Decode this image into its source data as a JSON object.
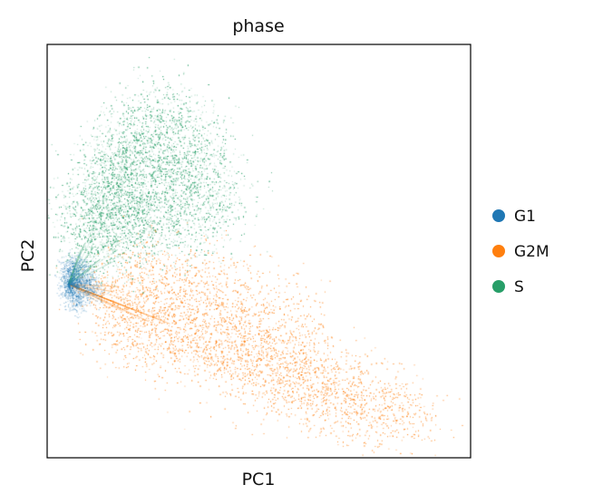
{
  "chart_data": {
    "type": "scatter",
    "title": "phase",
    "xlabel": "PC1",
    "ylabel": "PC2",
    "grid": false,
    "ticks": false,
    "legend_placement": "right",
    "xlim": [
      0,
      1
    ],
    "ylim": [
      0,
      1
    ],
    "series": [
      {
        "name": "G1",
        "color": "#1f77b4",
        "points": [
          [
            0.05,
            0.42
          ],
          [
            0.06,
            0.41
          ],
          [
            0.07,
            0.43
          ],
          [
            0.05,
            0.4
          ],
          [
            0.08,
            0.42
          ],
          [
            0.06,
            0.44
          ],
          [
            0.07,
            0.39
          ],
          [
            0.09,
            0.41
          ],
          [
            0.1,
            0.43
          ],
          [
            0.05,
            0.45
          ],
          [
            0.06,
            0.47
          ],
          [
            0.08,
            0.46
          ],
          [
            0.07,
            0.37
          ],
          [
            0.11,
            0.4
          ]
        ]
      },
      {
        "name": "G2M",
        "color": "#ff7f0e",
        "points": [
          [
            0.15,
            0.38
          ],
          [
            0.2,
            0.36
          ],
          [
            0.25,
            0.34
          ],
          [
            0.3,
            0.33
          ],
          [
            0.35,
            0.3
          ],
          [
            0.4,
            0.28
          ],
          [
            0.45,
            0.26
          ],
          [
            0.5,
            0.24
          ],
          [
            0.55,
            0.22
          ],
          [
            0.6,
            0.2
          ],
          [
            0.65,
            0.18
          ],
          [
            0.7,
            0.16
          ],
          [
            0.75,
            0.14
          ],
          [
            0.8,
            0.12
          ],
          [
            0.85,
            0.1
          ],
          [
            0.2,
            0.42
          ],
          [
            0.3,
            0.4
          ],
          [
            0.4,
            0.36
          ],
          [
            0.5,
            0.3
          ],
          [
            0.6,
            0.26
          ],
          [
            0.25,
            0.46
          ],
          [
            0.35,
            0.44
          ],
          [
            0.45,
            0.4
          ],
          [
            0.55,
            0.36
          ],
          [
            0.18,
            0.3
          ],
          [
            0.28,
            0.28
          ],
          [
            0.38,
            0.24
          ],
          [
            0.48,
            0.2
          ],
          [
            0.58,
            0.16
          ],
          [
            0.68,
            0.12
          ]
        ]
      },
      {
        "name": "S",
        "color": "#279e68",
        "points": [
          [
            0.1,
            0.55
          ],
          [
            0.12,
            0.62
          ],
          [
            0.15,
            0.7
          ],
          [
            0.18,
            0.75
          ],
          [
            0.22,
            0.78
          ],
          [
            0.25,
            0.72
          ],
          [
            0.28,
            0.68
          ],
          [
            0.3,
            0.62
          ],
          [
            0.2,
            0.66
          ],
          [
            0.14,
            0.58
          ],
          [
            0.32,
            0.8
          ],
          [
            0.35,
            0.74
          ],
          [
            0.38,
            0.66
          ],
          [
            0.4,
            0.6
          ],
          [
            0.26,
            0.84
          ],
          [
            0.18,
            0.58
          ],
          [
            0.12,
            0.5
          ],
          [
            0.22,
            0.54
          ],
          [
            0.3,
            0.56
          ],
          [
            0.16,
            0.64
          ]
        ]
      }
    ]
  }
}
